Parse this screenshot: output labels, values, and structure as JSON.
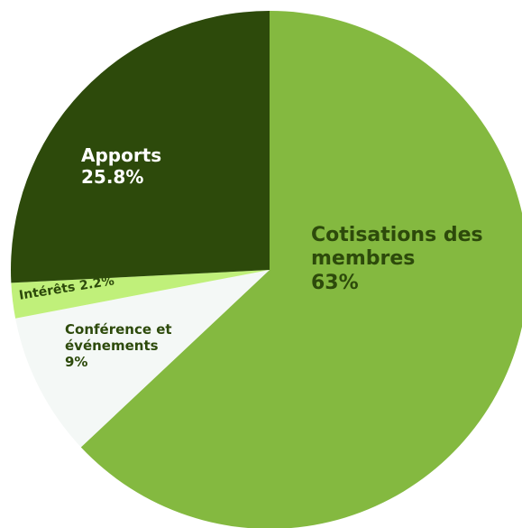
{
  "chart_data": {
    "type": "pie",
    "categories": [
      "Cotisations des membres",
      "Conférence et événements",
      "Intérêts",
      "Apports"
    ],
    "values": [
      63,
      9,
      2.2,
      25.8
    ],
    "value_labels": [
      "63%",
      "9%",
      "2.2%",
      "25.8%"
    ],
    "colors": [
      "#84b940",
      "#f4f8f6",
      "#c0f07a",
      "#2d4a0b"
    ]
  }
}
